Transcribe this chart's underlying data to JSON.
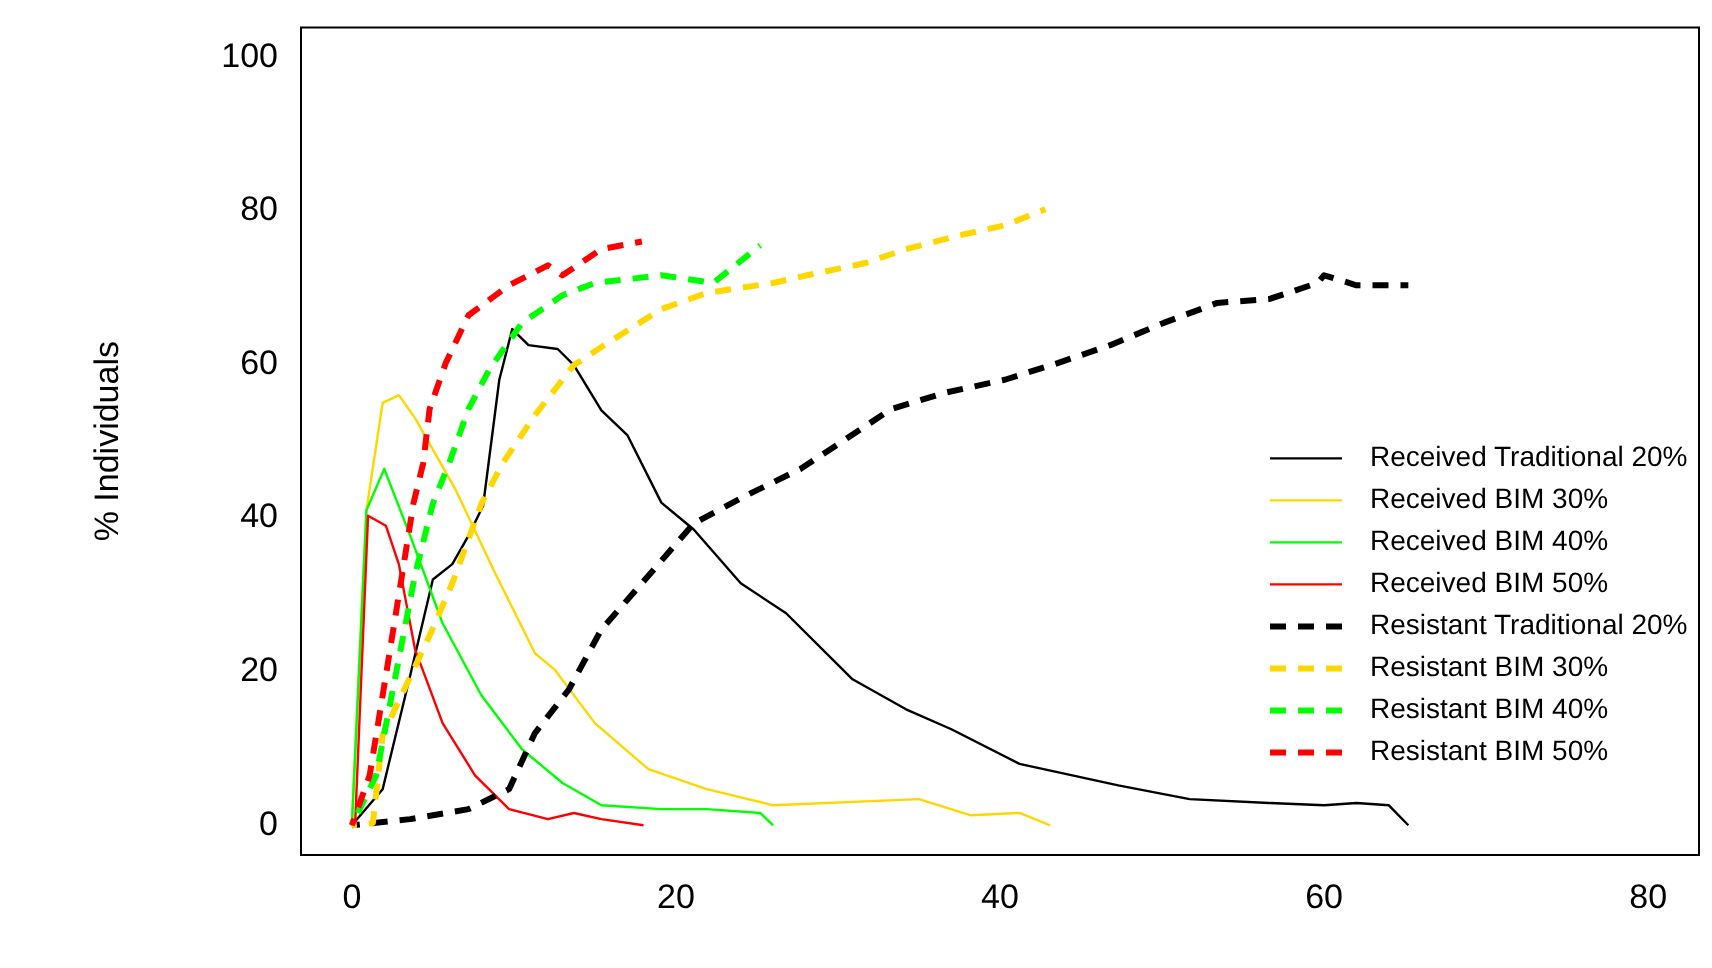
{
  "chart_data": {
    "type": "line",
    "ylabel": "% Individuals",
    "xlim": [
      -3.2,
      83.2
    ],
    "ylim": [
      -4,
      104
    ],
    "xticks": [
      0,
      20,
      40,
      60,
      80
    ],
    "yticks": [
      0,
      20,
      40,
      60,
      80,
      100
    ],
    "grid": false,
    "legend": "right",
    "marker": "none",
    "series": [
      {
        "name": "Received Traditional 20%",
        "color": "#000000",
        "line_style": "solid",
        "x": [
          0,
          1.9,
          3.6,
          5,
          6.2,
          7.2,
          8.1,
          9.1,
          9.9,
          10.9,
          12.7,
          13.7,
          15.4,
          17,
          19.1,
          21.1,
          24,
          26.8,
          30.9,
          34.2,
          37,
          41.2,
          47.3,
          51.7,
          56.6,
          60,
          62,
          64,
          65.2
        ],
        "values": [
          0,
          4.7,
          19.5,
          32,
          34,
          37.7,
          41.6,
          58,
          64.6,
          62.5,
          62,
          59.9,
          54,
          50.8,
          42,
          38.5,
          31.5,
          27.6,
          19,
          15.1,
          12.5,
          8,
          5.2,
          3.4,
          2.9,
          2.6,
          2.9,
          2.6,
          0
        ]
      },
      {
        "name": "Received BIM 30%",
        "color": "#ffd700",
        "line_style": "solid",
        "x": [
          0,
          0.9,
          1.9,
          2.9,
          3.9,
          6.4,
          8.8,
          11.3,
          12.5,
          15,
          18.3,
          21.9,
          26,
          35,
          38.2,
          41.2,
          43.1
        ],
        "values": [
          0,
          41,
          55,
          56,
          53,
          43.7,
          33,
          22.4,
          20.3,
          13.3,
          7.3,
          4.7,
          2.6,
          3.4,
          1.3,
          1.6,
          0
        ]
      },
      {
        "name": "Received BIM 40%",
        "color": "#00ff00",
        "line_style": "solid",
        "x": [
          0,
          0.9,
          2,
          3.6,
          5.6,
          8,
          10.5,
          13,
          15.4,
          19.1,
          21.9,
          25.2,
          26
        ],
        "values": [
          0,
          41,
          46.4,
          37.7,
          26.3,
          16.9,
          9.9,
          5.5,
          2.6,
          2.1,
          2.1,
          1.6,
          0
        ]
      },
      {
        "name": "Received BIM 50%",
        "color": "#ff0000",
        "line_style": "solid",
        "x": [
          0,
          0.2,
          1,
          2.1,
          2.9,
          3.9,
          5.6,
          7.6,
          9.7,
          12.1,
          13.7,
          15.4,
          18
        ],
        "values": [
          0,
          0,
          40.3,
          39,
          34,
          22.9,
          13.3,
          6.5,
          2.1,
          0.8,
          1.6,
          0.8,
          0
        ]
      },
      {
        "name": "Resistant Traditional 20%",
        "color": "#000000",
        "line_style": "dashed",
        "x": [
          0,
          3.6,
          7.2,
          9.7,
          11.3,
          13.4,
          15.4,
          17.9,
          21.1,
          24.4,
          27.7,
          33.3,
          36.6,
          40.3,
          43.6,
          46.8,
          50.1,
          53.4,
          56.6,
          59.6,
          60,
          62,
          65.2
        ],
        "values": [
          0,
          0.8,
          2.1,
          4.7,
          12,
          17.7,
          25.5,
          31.5,
          39.3,
          43,
          46.4,
          54.2,
          56.3,
          58,
          60.2,
          62.5,
          65.4,
          68,
          68.5,
          70.6,
          71.6,
          70.3,
          70.3
        ]
      },
      {
        "name": "Resistant BIM 30%",
        "color": "#ffd700",
        "line_style": "dashed",
        "x": [
          0,
          1.3,
          1.9,
          4.8,
          6.2,
          8,
          9.3,
          11.3,
          13.7,
          15.8,
          19.1,
          21.9,
          26,
          28.1,
          31.7,
          34.2,
          37.5,
          40.3,
          42.8
        ],
        "values": [
          0,
          0.3,
          11.7,
          24.7,
          31.5,
          41.9,
          47.1,
          53.4,
          59.9,
          62.8,
          67.2,
          69.3,
          70.6,
          71.6,
          73.2,
          75,
          76.8,
          78.1,
          80.2
        ]
      },
      {
        "name": "Resistant BIM 40%",
        "color": "#00ff00",
        "line_style": "dashed",
        "x": [
          0,
          1.5,
          2.7,
          3.9,
          5,
          6,
          7.2,
          8.5,
          10.5,
          13,
          15,
          19.1,
          22.3,
          25.2
        ],
        "values": [
          0,
          6.5,
          19.5,
          32.6,
          41.9,
          47.1,
          54.2,
          59.4,
          65.4,
          69,
          70.6,
          71.6,
          70.6,
          75.5
        ]
      },
      {
        "name": "Resistant BIM 50%",
        "color": "#ff0000",
        "line_style": "dashed",
        "x": [
          0,
          1.1,
          2.1,
          3.1,
          3.8,
          4.4,
          4.8,
          5.8,
          7.2,
          9.7,
          12.1,
          13,
          15.4,
          17.9
        ],
        "values": [
          0,
          6.5,
          19.5,
          32.6,
          41.9,
          47.1,
          54.2,
          60.2,
          66.4,
          70.3,
          72.9,
          71.6,
          75,
          76
        ]
      }
    ]
  }
}
